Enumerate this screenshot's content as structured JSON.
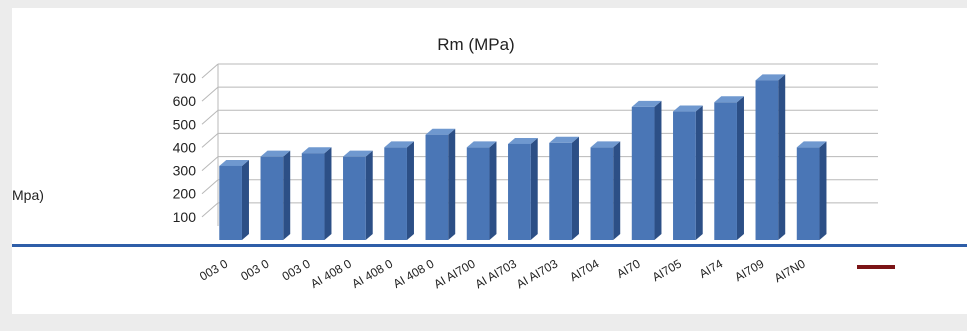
{
  "chart_data": {
    "type": "bar",
    "title": "Rm (MPa)",
    "ylabel": "Mpa)",
    "ylim": [
      0,
      700
    ],
    "yticks": [
      100,
      200,
      300,
      400,
      500,
      600,
      700
    ],
    "grid": true,
    "style": "3d-column",
    "colors": {
      "bar": "#4a76b6",
      "bar_side": "#2c4f86",
      "bar_top": "#6f98cf",
      "baseline": "#2e5ea8",
      "accent": "#7b1416"
    },
    "categories": [
      "003 0",
      "003 0",
      "003 0",
      "AI 408 0",
      "AI 408 0",
      "AI 408 0",
      "AI AI700",
      "AI AI703",
      "AI AI703",
      "AI704",
      "AI70",
      "AI705",
      "AI74",
      "AI709",
      "AI7N0",
      ""
    ],
    "values": [
      320,
      360,
      375,
      360,
      400,
      455,
      400,
      415,
      420,
      400,
      575,
      555,
      595,
      690,
      400,
      0
    ]
  }
}
